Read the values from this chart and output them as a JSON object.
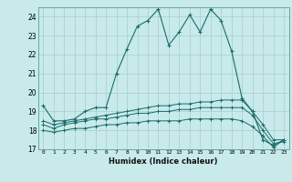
{
  "title": "",
  "xlabel": "Humidex (Indice chaleur)",
  "xlim": [
    -0.5,
    23.5
  ],
  "ylim": [
    17,
    24.5
  ],
  "bg_color": "#c8eaea",
  "line_color": "#1a6b6b",
  "grid_color": "#a8cccc",
  "x": [
    0,
    1,
    2,
    3,
    4,
    5,
    6,
    7,
    8,
    9,
    10,
    11,
    12,
    13,
    14,
    15,
    16,
    17,
    18,
    19,
    20,
    21,
    22,
    23
  ],
  "line1": [
    19.3,
    18.5,
    18.5,
    18.6,
    19.0,
    19.2,
    19.2,
    21.0,
    22.3,
    23.5,
    23.8,
    24.4,
    22.5,
    23.2,
    24.1,
    23.2,
    24.4,
    23.8,
    22.2,
    19.7,
    19.0,
    17.5,
    17.2,
    17.5
  ],
  "line2": [
    18.5,
    18.3,
    18.4,
    18.5,
    18.6,
    18.7,
    18.8,
    18.9,
    19.0,
    19.1,
    19.2,
    19.3,
    19.3,
    19.4,
    19.4,
    19.5,
    19.5,
    19.6,
    19.6,
    19.6,
    19.0,
    18.3,
    17.5,
    17.5
  ],
  "line3": [
    18.3,
    18.1,
    18.3,
    18.4,
    18.5,
    18.6,
    18.6,
    18.7,
    18.8,
    18.9,
    18.9,
    19.0,
    19.0,
    19.1,
    19.1,
    19.2,
    19.2,
    19.2,
    19.2,
    19.2,
    18.8,
    18.0,
    17.3,
    17.4
  ],
  "line4": [
    18.0,
    17.9,
    18.0,
    18.1,
    18.1,
    18.2,
    18.3,
    18.3,
    18.4,
    18.4,
    18.5,
    18.5,
    18.5,
    18.5,
    18.6,
    18.6,
    18.6,
    18.6,
    18.6,
    18.5,
    18.2,
    17.7,
    17.1,
    17.5
  ],
  "yticks": [
    17,
    18,
    19,
    20,
    21,
    22,
    23,
    24
  ],
  "xticks": [
    0,
    1,
    2,
    3,
    4,
    5,
    6,
    7,
    8,
    9,
    10,
    11,
    12,
    13,
    14,
    15,
    16,
    17,
    18,
    19,
    20,
    21,
    22,
    23
  ]
}
